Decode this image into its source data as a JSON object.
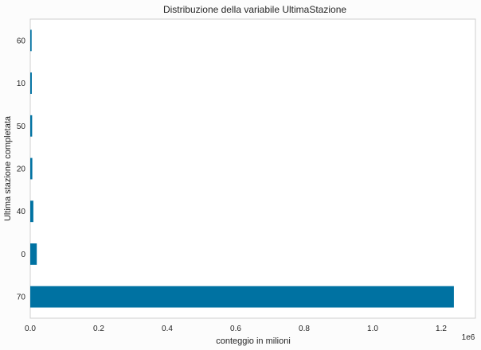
{
  "chart_data": {
    "type": "bar",
    "orientation": "horizontal",
    "title": "Distribuzione della variabile UltimaStazione",
    "xlabel": "conteggio in milioni",
    "ylabel": "Ultima stazione completata",
    "x_offset_label": "1e6",
    "categories": [
      "70",
      "0",
      "40",
      "20",
      "50",
      "10",
      "60"
    ],
    "values": [
      1237000,
      19000,
      9000,
      6000,
      5500,
      4500,
      4000
    ],
    "xlim": [
      0,
      1300000
    ],
    "xticks": [
      0,
      200000,
      400000,
      600000,
      800000,
      1000000,
      1200000
    ],
    "xtick_labels": [
      "0.0",
      "0.2",
      "0.4",
      "0.6",
      "0.8",
      "1.0",
      "1.2"
    ],
    "grid": false,
    "bar_color": "#0072a2",
    "frame_color": "#cfcfcf",
    "background": "#ffffff"
  }
}
